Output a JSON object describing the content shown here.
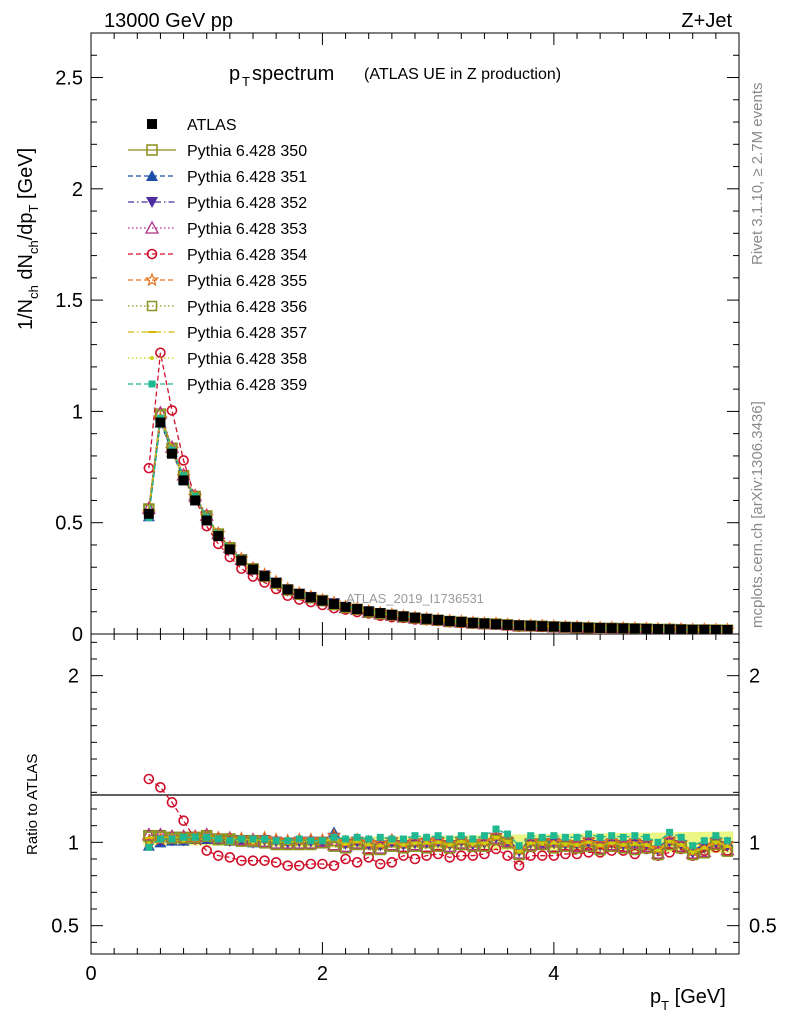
{
  "header": {
    "energy": "13000 GeV pp",
    "process": "Z+Jet"
  },
  "title": {
    "main": "p",
    "main_sub": "T",
    "main_rest": " spectrum",
    "note": "(ATLAS UE in Z production)"
  },
  "side_labels": {
    "rivet": "Rivet 3.1.10, ≥ 2.7M events",
    "mcplots": "mcplots.cern.ch [arXiv:1306.3436]"
  },
  "watermark": "ATLAS_2019_I1736531",
  "axes": {
    "ylabel_main": "1/N_ch dN_ch/dp_T [GeV]",
    "ylabel_ratio": "Ratio to ATLAS",
    "xlabel": "p_T [GeV]",
    "x_ticks": [
      "0",
      "2",
      "4"
    ],
    "y_ticks_main": [
      "0",
      "0.5",
      "1",
      "1.5",
      "2",
      "2.5"
    ],
    "y_ticks_ratio": [
      "0.5",
      "1",
      "2"
    ]
  },
  "legend": [
    {
      "label": "ATLAS",
      "color": "#000000",
      "marker": "filled-square",
      "line": "none"
    },
    {
      "label": "Pythia 6.428 350",
      "color": "#8c8c1c",
      "marker": "open-square",
      "line": "solid"
    },
    {
      "label": "Pythia 6.428 351",
      "color": "#1f4fa8",
      "marker": "filled-triangle-up",
      "line": "dashed"
    },
    {
      "label": "Pythia 6.428 352",
      "color": "#4c2ca0",
      "marker": "filled-triangle-down",
      "line": "dashdot"
    },
    {
      "label": "Pythia 6.428 353",
      "color": "#b0308a",
      "marker": "open-triangle-up",
      "line": "dotted"
    },
    {
      "label": "Pythia 6.428 354",
      "color": "#d0102a",
      "marker": "open-circle",
      "line": "dashed"
    },
    {
      "label": "Pythia 6.428 355",
      "color": "#e8701c",
      "marker": "star",
      "line": "dashed"
    },
    {
      "label": "Pythia 6.428 356",
      "color": "#8a9420",
      "marker": "open-square-small",
      "line": "dotted"
    },
    {
      "label": "Pythia 6.428 357",
      "color": "#d8b800",
      "marker": "tick",
      "line": "dashdot"
    },
    {
      "label": "Pythia 6.428 358",
      "color": "#c8d010",
      "marker": "dot",
      "line": "dotted"
    },
    {
      "label": "Pythia 6.428 359",
      "color": "#20b890",
      "marker": "filled-square-small",
      "line": "dashed"
    }
  ],
  "chart_data": {
    "type": "scatter",
    "xlim": [
      0,
      5.6
    ],
    "ylim_main": [
      0,
      2.7
    ],
    "ylim_ratio": [
      0.33,
      2.25
    ],
    "log_y": false,
    "x": [
      0.5,
      0.6,
      0.7,
      0.8,
      0.9,
      1.0,
      1.1,
      1.2,
      1.3,
      1.4,
      1.5,
      1.6,
      1.7,
      1.8,
      1.9,
      2.0,
      2.1,
      2.2,
      2.3,
      2.4,
      2.5,
      2.6,
      2.7,
      2.8,
      2.9,
      3.0,
      3.1,
      3.2,
      3.3,
      3.4,
      3.5,
      3.6,
      3.7,
      3.8,
      3.9,
      4.0,
      4.1,
      4.2,
      4.3,
      4.4,
      4.5,
      4.6,
      4.7,
      4.8,
      4.9,
      5.0,
      5.1,
      5.2,
      5.3,
      5.4,
      5.5
    ],
    "atlas": [
      0.54,
      0.95,
      0.81,
      0.69,
      0.6,
      0.51,
      0.44,
      0.38,
      0.33,
      0.29,
      0.26,
      0.23,
      0.2,
      0.18,
      0.165,
      0.15,
      0.135,
      0.122,
      0.112,
      0.102,
      0.094,
      0.086,
      0.079,
      0.073,
      0.068,
      0.063,
      0.058,
      0.054,
      0.05,
      0.047,
      0.044,
      0.041,
      0.039,
      0.037,
      0.035,
      0.033,
      0.031,
      0.03,
      0.028,
      0.027,
      0.026,
      0.025,
      0.024,
      0.023,
      0.022,
      0.021,
      0.02,
      0.019,
      0.019,
      0.018,
      0.018
    ],
    "series": [
      {
        "name": "Pythia 6.428 350",
        "ratio": [
          1.04,
          1.04,
          1.03,
          1.03,
          1.03,
          1.04,
          1.02,
          1.02,
          1.01,
          1.01,
          1.0,
          0.99,
          0.99,
          0.99,
          0.99,
          1.0,
          0.98,
          0.97,
          0.99,
          0.96,
          0.96,
          0.98,
          0.97,
          0.98,
          0.97,
          0.98,
          0.97,
          0.99,
          0.98,
          0.98,
          1.02,
          1.0,
          0.93,
          0.98,
          0.99,
          0.97,
          0.98,
          0.97,
          0.98,
          0.96,
          0.98,
          0.97,
          0.96,
          0.97,
          0.93,
          0.99,
          0.97,
          0.93,
          0.94,
          0.99,
          0.95
        ]
      },
      {
        "name": "Pythia 6.428 351",
        "ratio": [
          0.98,
          1.0,
          1.01,
          1.01,
          1.02,
          1.02,
          1.02,
          1.01,
          1.02,
          1.0,
          1.03,
          1.02,
          1.01,
          1.02,
          1.02,
          1.01,
          1.06,
          1.01,
          1.02,
          1.01,
          1.0,
          1.02,
          1.0,
          1.01,
          1.02,
          1.02,
          1.0,
          1.02,
          1.0,
          1.01,
          1.04,
          1.01,
          0.96,
          1.01,
          1.0,
          1.02,
          1.0,
          1.0,
          1.02,
          1.0,
          1.01,
          1.0,
          1.02,
          1.0,
          0.97,
          1.02,
          1.0,
          0.95,
          0.99,
          1.01,
          1.0
        ]
      },
      {
        "name": "Pythia 6.428 354",
        "ratio": [
          1.38,
          1.33,
          1.24,
          1.13,
          1.02,
          0.95,
          0.92,
          0.91,
          0.89,
          0.89,
          0.89,
          0.88,
          0.86,
          0.86,
          0.87,
          0.87,
          0.86,
          0.9,
          0.88,
          0.91,
          0.87,
          0.88,
          0.92,
          0.9,
          0.92,
          0.93,
          0.91,
          0.92,
          0.92,
          0.93,
          0.96,
          0.92,
          0.86,
          0.92,
          0.92,
          0.92,
          0.93,
          0.93,
          0.94,
          0.94,
          0.95,
          0.95,
          0.93,
          0.96,
          0.92,
          0.94,
          0.96,
          0.92,
          0.95,
          0.97,
          0.95
        ]
      },
      {
        "name": "Pythia 6.428 359",
        "ratio": [
          0.97,
          1.02,
          1.02,
          1.03,
          1.03,
          1.03,
          1.02,
          1.01,
          1.02,
          1.02,
          1.02,
          1.01,
          1.01,
          1.02,
          1.01,
          1.01,
          1.03,
          1.02,
          1.03,
          1.02,
          1.03,
          1.02,
          1.02,
          1.04,
          1.03,
          1.04,
          1.02,
          1.04,
          1.02,
          1.04,
          1.08,
          1.05,
          0.98,
          1.04,
          1.03,
          1.04,
          1.03,
          1.03,
          1.05,
          1.03,
          1.04,
          1.03,
          1.04,
          1.03,
          1.0,
          1.06,
          1.03,
          0.98,
          1.01,
          1.04,
          1.01
        ]
      }
    ]
  }
}
